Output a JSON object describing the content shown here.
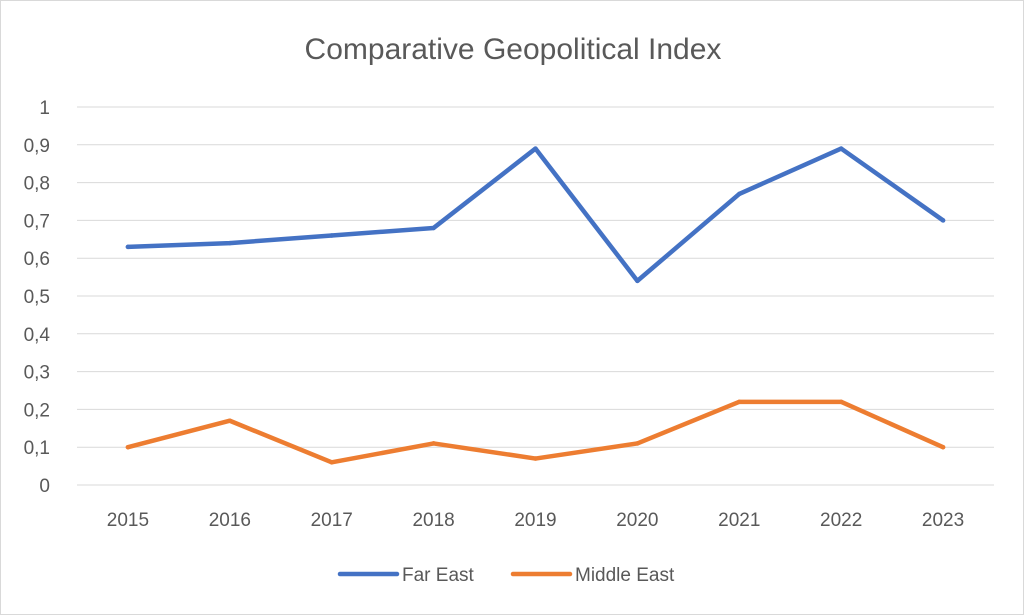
{
  "chart_data": {
    "type": "line",
    "title": "Comparative Geopolitical Index",
    "xlabel": "",
    "ylabel": "",
    "categories": [
      "2015",
      "2016",
      "2017",
      "2018",
      "2019",
      "2020",
      "2021",
      "2022",
      "2023"
    ],
    "ylim": [
      0,
      1
    ],
    "ytick_labels": [
      "0",
      "0,1",
      "0,2",
      "0,3",
      "0,4",
      "0,5",
      "0,6",
      "0,7",
      "0,8",
      "0,9",
      "1"
    ],
    "grid": true,
    "legend_position": "bottom",
    "series": [
      {
        "name": "Far East",
        "color": "#4472c4",
        "values": [
          0.63,
          0.64,
          0.66,
          0.68,
          0.89,
          0.54,
          0.77,
          0.89,
          0.7
        ]
      },
      {
        "name": "Middle East",
        "color": "#ed7d31",
        "values": [
          0.1,
          0.17,
          0.06,
          0.11,
          0.07,
          0.11,
          0.22,
          0.22,
          0.1
        ]
      }
    ]
  }
}
